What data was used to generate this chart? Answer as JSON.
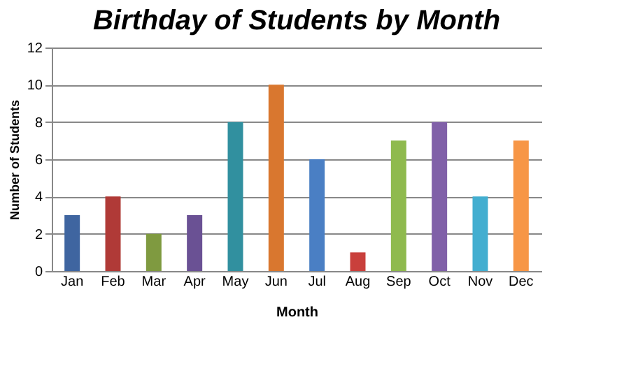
{
  "chart_data": {
    "type": "bar",
    "title": "Birthday of Students by Month",
    "xlabel": "Month",
    "ylabel": "Number of Students",
    "categories": [
      "Jan",
      "Feb",
      "Mar",
      "Apr",
      "May",
      "Jun",
      "Jul",
      "Aug",
      "Sep",
      "Oct",
      "Nov",
      "Dec"
    ],
    "values": [
      3,
      4,
      2,
      3,
      8,
      10,
      6,
      1,
      7,
      8,
      4,
      7
    ],
    "colors": [
      "#3f65a0",
      "#b03a37",
      "#7f9a40",
      "#6a5194",
      "#31909f",
      "#d9772f",
      "#4a7fc4",
      "#c9403c",
      "#8fba4e",
      "#8060a8",
      "#43aed0",
      "#f79646"
    ],
    "ylim": [
      0,
      12
    ],
    "yticks": [
      0,
      2,
      4,
      6,
      8,
      10,
      12
    ],
    "grid": "y"
  }
}
